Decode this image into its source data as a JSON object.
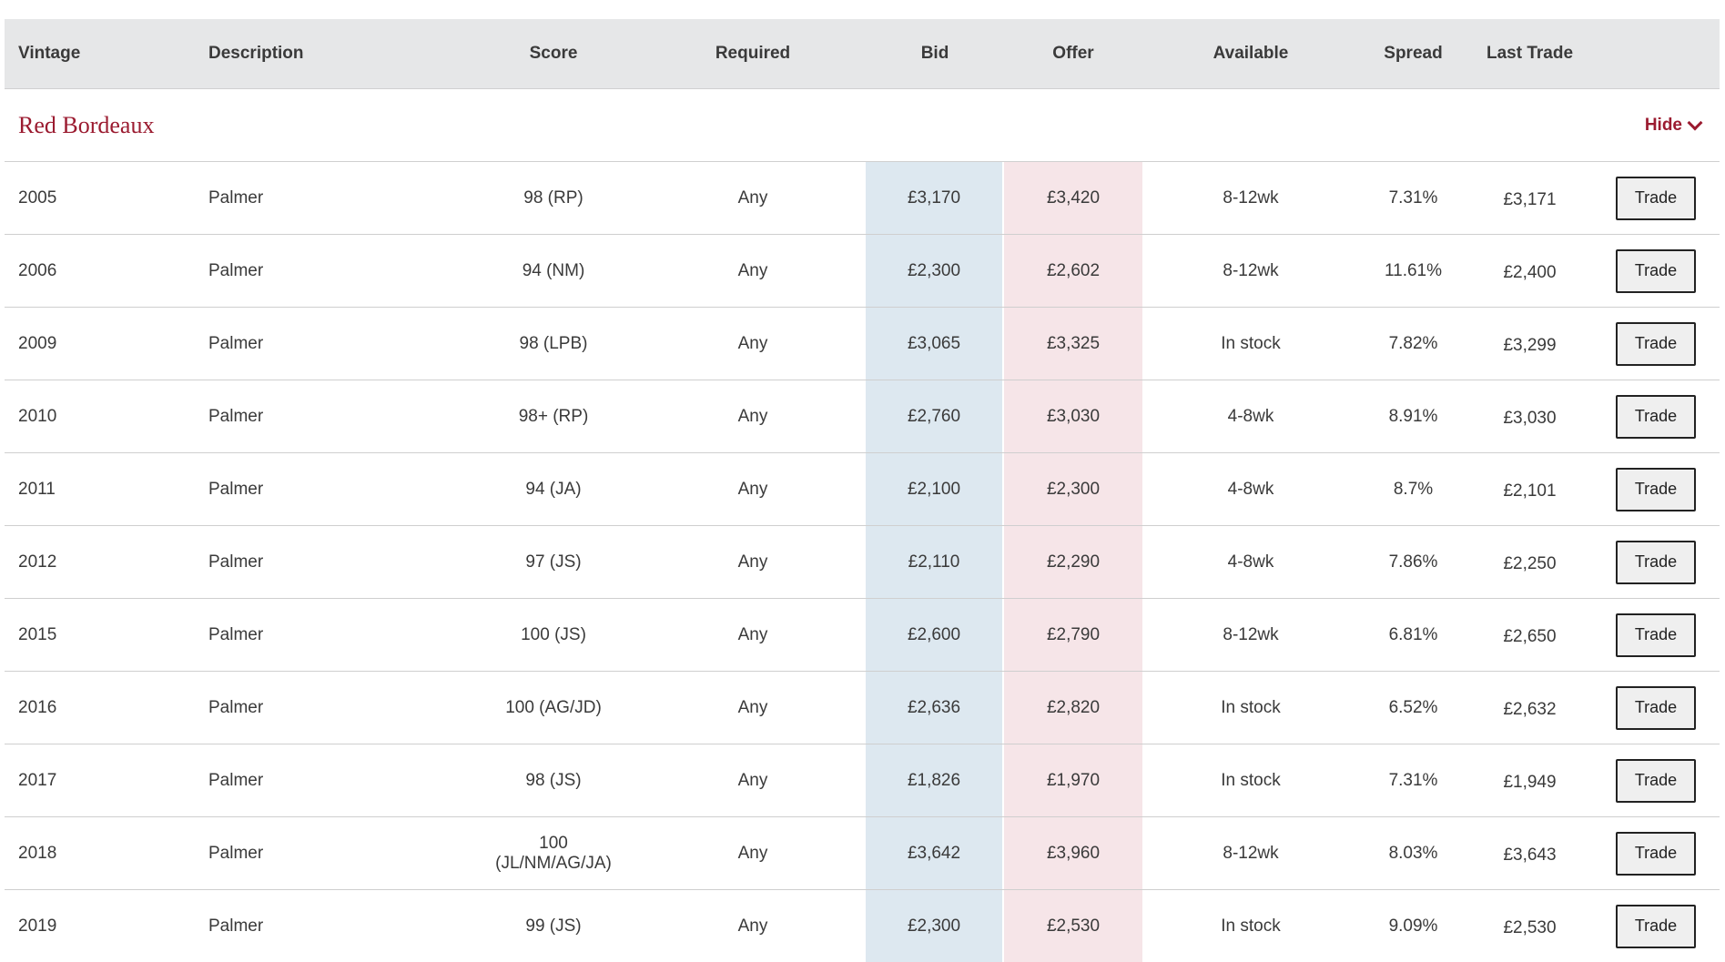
{
  "columns": [
    "Vintage",
    "Description",
    "Score",
    "Required",
    "Bid",
    "Offer",
    "Available",
    "Spread",
    "Last Trade",
    ""
  ],
  "group": {
    "title": "Red Bordeaux",
    "hide_label": "Hide"
  },
  "rows": [
    {
      "vintage": "2005",
      "description": "Palmer",
      "score": "98 (RP)",
      "required": "Any",
      "bid": "£3,170",
      "offer": "£3,420",
      "available": "8-12wk",
      "spread": "7.31%",
      "last_trade": "£3,171",
      "action": "Trade"
    },
    {
      "vintage": "2006",
      "description": "Palmer",
      "score": "94 (NM)",
      "required": "Any",
      "bid": "£2,300",
      "offer": "£2,602",
      "available": "8-12wk",
      "spread": "11.61%",
      "last_trade": "£2,400",
      "action": "Trade"
    },
    {
      "vintage": "2009",
      "description": "Palmer",
      "score": "98 (LPB)",
      "required": "Any",
      "bid": "£3,065",
      "offer": "£3,325",
      "available": "In stock",
      "spread": "7.82%",
      "last_trade": "£3,299",
      "action": "Trade"
    },
    {
      "vintage": "2010",
      "description": "Palmer",
      "score": "98+ (RP)",
      "required": "Any",
      "bid": "£2,760",
      "offer": "£3,030",
      "available": "4-8wk",
      "spread": "8.91%",
      "last_trade": "£3,030",
      "action": "Trade"
    },
    {
      "vintage": "2011",
      "description": "Palmer",
      "score": "94 (JA)",
      "required": "Any",
      "bid": "£2,100",
      "offer": "£2,300",
      "available": "4-8wk",
      "spread": "8.7%",
      "last_trade": "£2,101",
      "action": "Trade"
    },
    {
      "vintage": "2012",
      "description": "Palmer",
      "score": "97 (JS)",
      "required": "Any",
      "bid": "£2,110",
      "offer": "£2,290",
      "available": "4-8wk",
      "spread": "7.86%",
      "last_trade": "£2,250",
      "action": "Trade"
    },
    {
      "vintage": "2015",
      "description": "Palmer",
      "score": "100 (JS)",
      "required": "Any",
      "bid": "£2,600",
      "offer": "£2,790",
      "available": "8-12wk",
      "spread": "6.81%",
      "last_trade": "£2,650",
      "action": "Trade"
    },
    {
      "vintage": "2016",
      "description": "Palmer",
      "score": "100 (AG/JD)",
      "required": "Any",
      "bid": "£2,636",
      "offer": "£2,820",
      "available": "In stock",
      "spread": "6.52%",
      "last_trade": "£2,632",
      "action": "Trade"
    },
    {
      "vintage": "2017",
      "description": "Palmer",
      "score": "98 (JS)",
      "required": "Any",
      "bid": "£1,826",
      "offer": "£1,970",
      "available": "In stock",
      "spread": "7.31%",
      "last_trade": "£1,949",
      "action": "Trade"
    },
    {
      "vintage": "2018",
      "description": "Palmer",
      "score": "100 (JL/NM/AG/JA)",
      "required": "Any",
      "bid": "£3,642",
      "offer": "£3,960",
      "available": "8-12wk",
      "spread": "8.03%",
      "last_trade": "£3,643",
      "action": "Trade"
    },
    {
      "vintage": "2019",
      "description": "Palmer",
      "score": "99 (JS)",
      "required": "Any",
      "bid": "£2,300",
      "offer": "£2,530",
      "available": "In stock",
      "spread": "9.09%",
      "last_trade": "£2,530",
      "action": "Trade"
    }
  ],
  "colors": {
    "header_bg": "#e6e7e8",
    "accent": "#9b1b30",
    "bid_bg": "#dde8f0",
    "offer_bg": "#f6e5e8"
  },
  "icons": {
    "hide_toggle": "chevron-down-icon"
  }
}
